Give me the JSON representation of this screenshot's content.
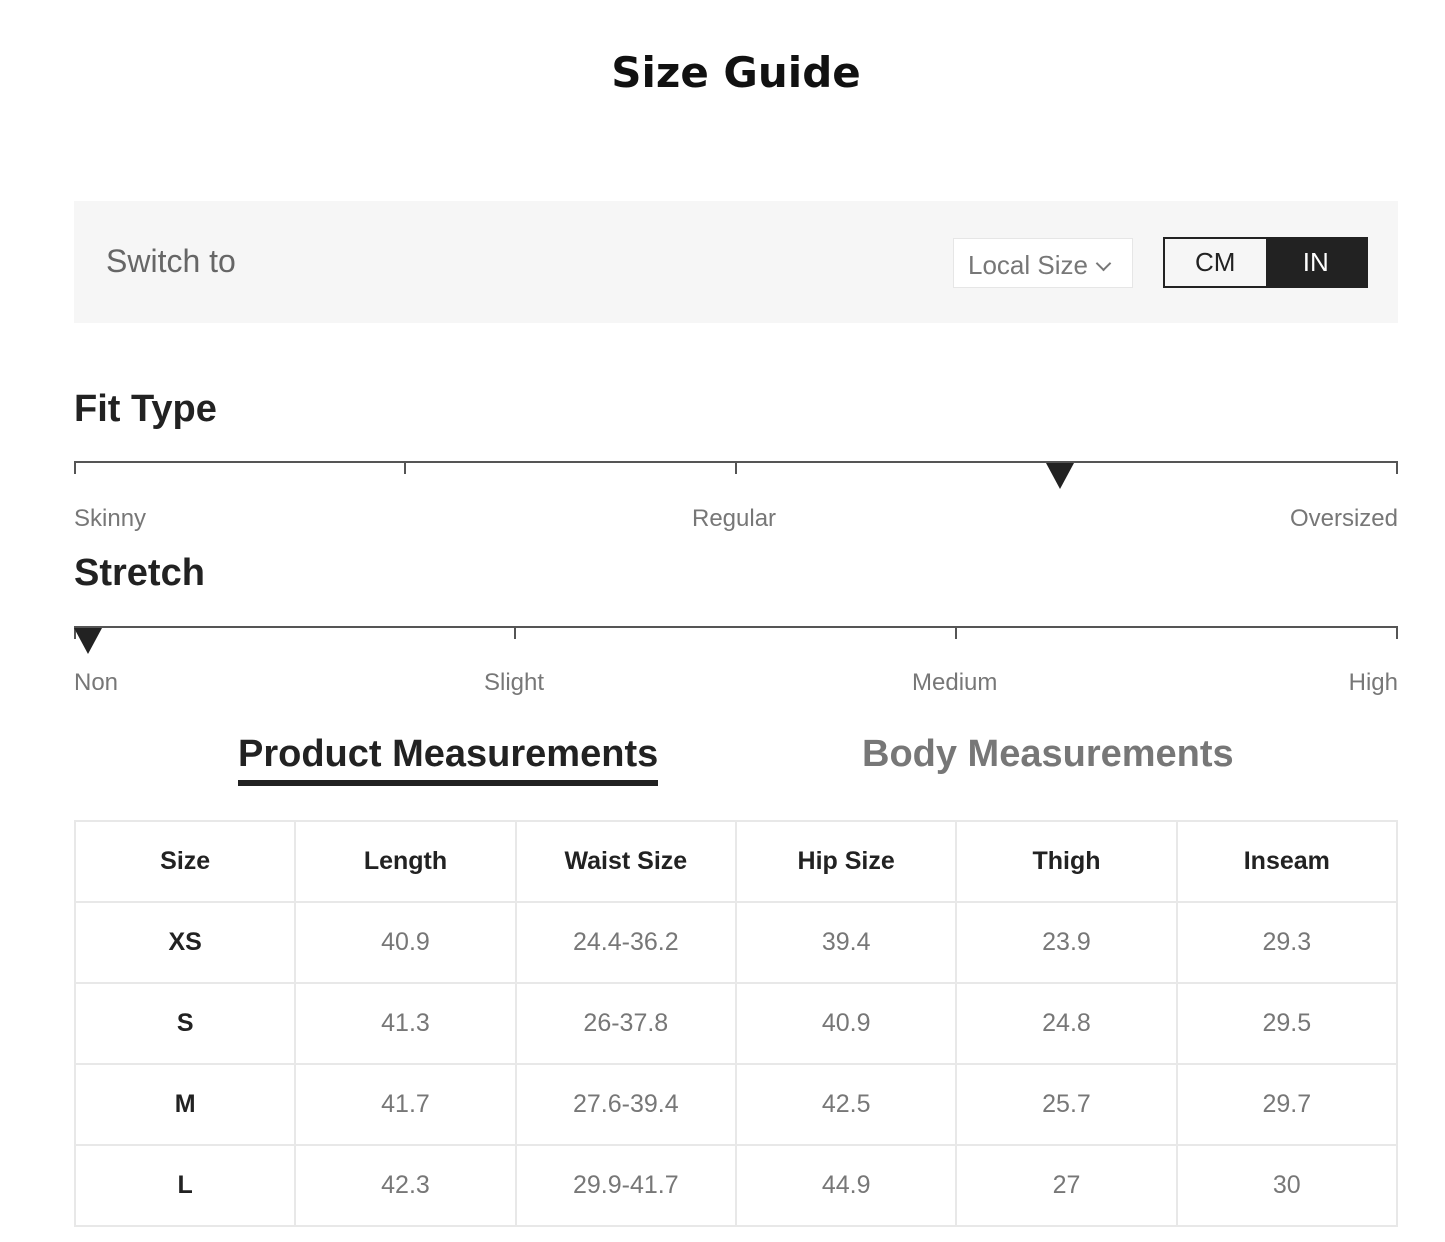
{
  "title": "Size Guide",
  "switch": {
    "label": "Switch to",
    "local_size": "Local Size",
    "units": [
      "CM",
      "IN"
    ],
    "selected_unit": "IN"
  },
  "fit_type": {
    "title": "Fit Type",
    "labels": [
      "Skinny",
      "Regular",
      "Oversized"
    ],
    "value": 0.75
  },
  "stretch": {
    "title": "Stretch",
    "labels": [
      "Non",
      "Slight",
      "Medium",
      "High"
    ],
    "value": 0
  },
  "tabs": {
    "product": "Product Measurements",
    "body": "Body Measurements",
    "active": "product"
  },
  "table": {
    "headers": [
      "Size",
      "Length",
      "Waist Size",
      "Hip Size",
      "Thigh",
      "Inseam"
    ],
    "rows": [
      [
        "XS",
        "40.9",
        "24.4-36.2",
        "39.4",
        "23.9",
        "29.3"
      ],
      [
        "S",
        "41.3",
        "26-37.8",
        "40.9",
        "24.8",
        "29.5"
      ],
      [
        "M",
        "41.7",
        "27.6-39.4",
        "42.5",
        "25.7",
        "29.7"
      ],
      [
        "L",
        "42.3",
        "29.9-41.7",
        "44.9",
        "27",
        "30"
      ]
    ]
  }
}
